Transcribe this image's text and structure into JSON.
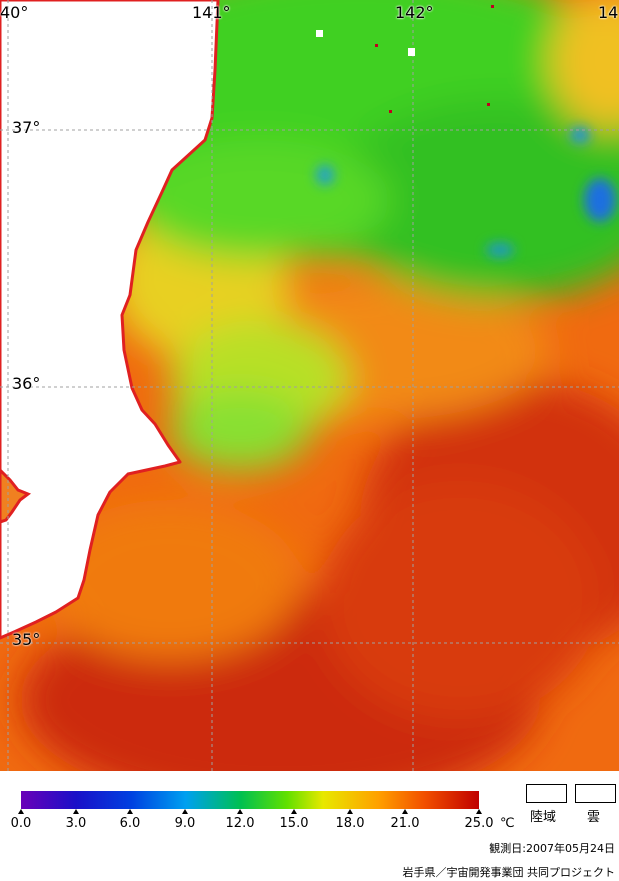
{
  "map": {
    "graticule_labels": {
      "lon": [
        "40°",
        "141°",
        "142°",
        "14"
      ],
      "lat": [
        "37°",
        "36°",
        "35°"
      ]
    },
    "colors": {
      "land": "#ffffff",
      "coastline": "#e02020",
      "grid": "#a0a0a0"
    }
  },
  "colorbar": {
    "ticks": [
      "0.0",
      "3.0",
      "6.0",
      "9.0",
      "12.0",
      "15.0",
      "18.0",
      "21.0",
      "25.0"
    ],
    "unit": "℃"
  },
  "legend": {
    "land_label": "陸域",
    "cloud_label": "雲"
  },
  "footer": {
    "observation_date": "観測日:2007年05月24日",
    "credit": "岩手県／宇宙開発事業団  共同プロジェクト"
  }
}
